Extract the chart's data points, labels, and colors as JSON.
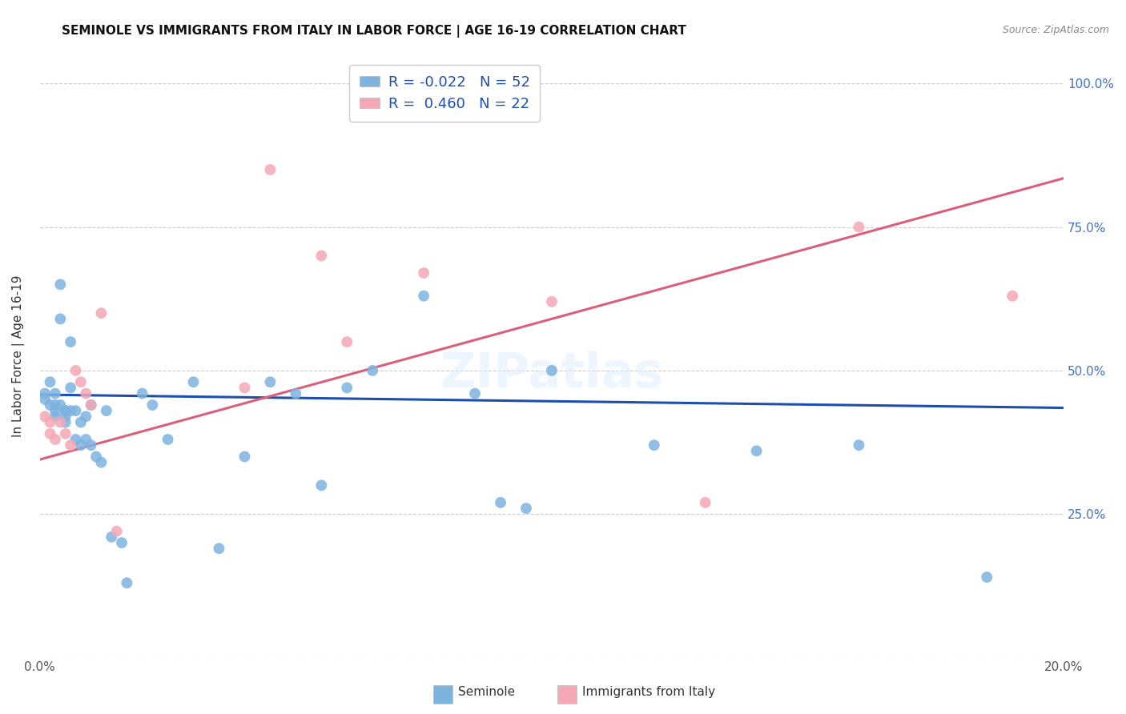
{
  "title": "SEMINOLE VS IMMIGRANTS FROM ITALY IN LABOR FORCE | AGE 16-19 CORRELATION CHART",
  "source": "Source: ZipAtlas.com",
  "ylabel": "In Labor Force | Age 16-19",
  "x_min": 0.0,
  "x_max": 0.2,
  "y_min": 0.0,
  "y_max": 1.05,
  "x_ticks": [
    0.0,
    0.04,
    0.08,
    0.12,
    0.16,
    0.2
  ],
  "x_tick_labels": [
    "0.0%",
    "",
    "",
    "",
    "",
    "20.0%"
  ],
  "y_ticks": [
    0.0,
    0.25,
    0.5,
    0.75,
    1.0
  ],
  "y_tick_labels": [
    "",
    "25.0%",
    "50.0%",
    "75.0%",
    "100.0%"
  ],
  "seminole_color": "#7EB3E0",
  "italy_color": "#F4A7B5",
  "trendline_seminole_color": "#1E4FAF",
  "trendline_italy_color": "#D95F7A",
  "legend_r_seminole": "-0.022",
  "legend_n_seminole": "52",
  "legend_r_italy": "0.460",
  "legend_n_italy": "22",
  "watermark": "ZIPatlas",
  "trendline_sem_x0": 0.0,
  "trendline_sem_y0": 0.458,
  "trendline_sem_x1": 0.2,
  "trendline_sem_y1": 0.435,
  "trendline_ita_x0": 0.0,
  "trendline_ita_y0": 0.345,
  "trendline_ita_x1": 0.2,
  "trendline_ita_y1": 0.835,
  "seminole_x": [
    0.001,
    0.001,
    0.002,
    0.002,
    0.003,
    0.003,
    0.003,
    0.003,
    0.004,
    0.004,
    0.004,
    0.005,
    0.005,
    0.005,
    0.005,
    0.006,
    0.006,
    0.006,
    0.007,
    0.007,
    0.008,
    0.008,
    0.009,
    0.009,
    0.01,
    0.01,
    0.011,
    0.012,
    0.013,
    0.014,
    0.016,
    0.017,
    0.02,
    0.022,
    0.025,
    0.03,
    0.035,
    0.04,
    0.045,
    0.05,
    0.055,
    0.06,
    0.065,
    0.075,
    0.085,
    0.09,
    0.095,
    0.1,
    0.12,
    0.14,
    0.16,
    0.185
  ],
  "seminole_y": [
    0.46,
    0.45,
    0.48,
    0.44,
    0.46,
    0.44,
    0.43,
    0.42,
    0.65,
    0.59,
    0.44,
    0.43,
    0.43,
    0.42,
    0.41,
    0.55,
    0.47,
    0.43,
    0.43,
    0.38,
    0.41,
    0.37,
    0.42,
    0.38,
    0.44,
    0.37,
    0.35,
    0.34,
    0.43,
    0.21,
    0.2,
    0.13,
    0.46,
    0.44,
    0.38,
    0.48,
    0.19,
    0.35,
    0.48,
    0.46,
    0.3,
    0.47,
    0.5,
    0.63,
    0.46,
    0.27,
    0.26,
    0.5,
    0.37,
    0.36,
    0.37,
    0.14
  ],
  "italy_x": [
    0.001,
    0.002,
    0.002,
    0.003,
    0.004,
    0.005,
    0.006,
    0.007,
    0.008,
    0.009,
    0.01,
    0.012,
    0.015,
    0.04,
    0.045,
    0.055,
    0.06,
    0.075,
    0.1,
    0.13,
    0.16,
    0.19
  ],
  "italy_y": [
    0.42,
    0.41,
    0.39,
    0.38,
    0.41,
    0.39,
    0.37,
    0.5,
    0.48,
    0.46,
    0.44,
    0.6,
    0.22,
    0.47,
    0.85,
    0.7,
    0.55,
    0.67,
    0.62,
    0.27,
    0.75,
    0.63
  ]
}
